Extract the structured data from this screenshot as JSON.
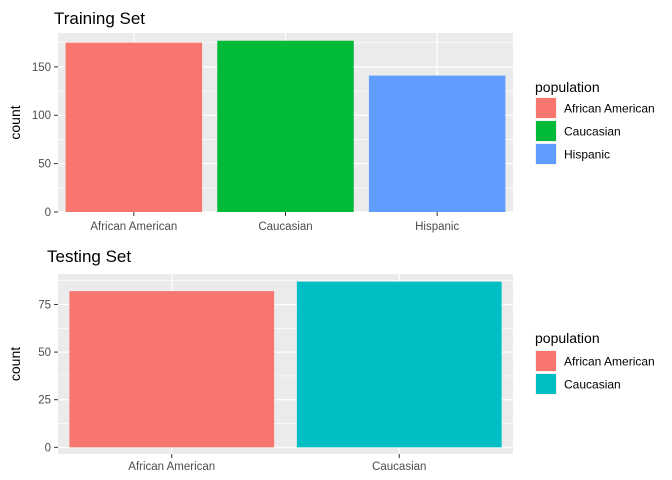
{
  "chart_data": [
    {
      "type": "bar",
      "title": "Training Set",
      "xlabel": "",
      "ylabel": "count",
      "categories": [
        "African American",
        "Caucasian",
        "Hispanic"
      ],
      "values": [
        175,
        177,
        141
      ],
      "colors": [
        "#F8766D",
        "#00BA38",
        "#619CFF"
      ],
      "ylim": [
        0,
        185
      ],
      "yticks": [
        0,
        50,
        100,
        150
      ],
      "grid": true,
      "legend": {
        "title": "population",
        "position": "right",
        "entries": [
          {
            "label": "African American",
            "color": "#F8766D"
          },
          {
            "label": "Caucasian",
            "color": "#00BA38"
          },
          {
            "label": "Hispanic",
            "color": "#619CFF"
          }
        ]
      }
    },
    {
      "type": "bar",
      "title": "Testing Set",
      "xlabel": "",
      "ylabel": "count",
      "categories": [
        "African American",
        "Caucasian"
      ],
      "values": [
        82,
        87
      ],
      "colors": [
        "#F8766D",
        "#00BFC4"
      ],
      "ylim": [
        -3.5,
        91
      ],
      "yticks": [
        0,
        25,
        50,
        75
      ],
      "grid": true,
      "legend": {
        "title": "population",
        "position": "right",
        "entries": [
          {
            "label": "African American",
            "color": "#F8766D"
          },
          {
            "label": "Caucasian",
            "color": "#00BFC4"
          }
        ]
      }
    }
  ]
}
